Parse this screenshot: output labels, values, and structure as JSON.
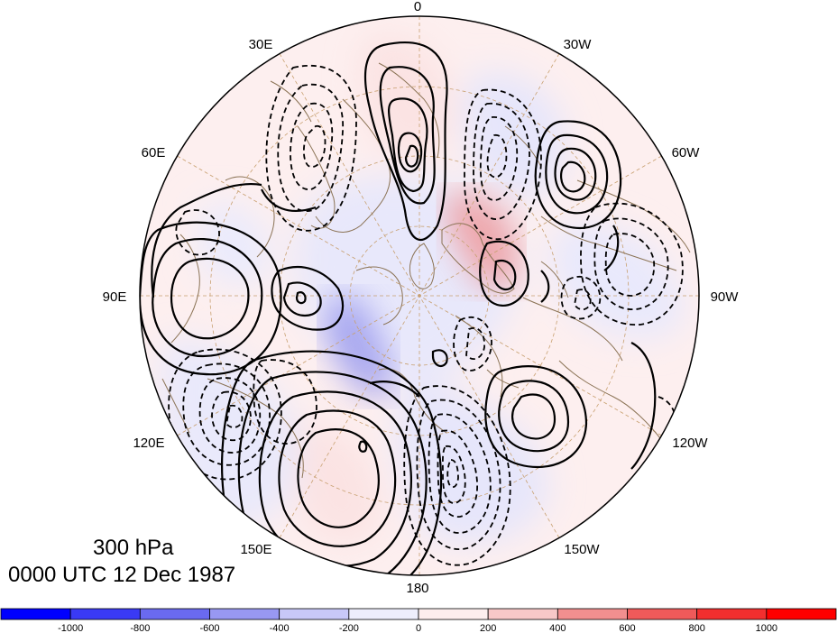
{
  "map": {
    "projection": "north-polar-stereographic",
    "longitude_labels": {
      "top": "0",
      "30W": "30W",
      "60W": "60W",
      "90W": "90W",
      "120W": "120W",
      "150W": "150W",
      "bottom": "180",
      "150E": "150E",
      "120E": "120E",
      "90E": "90E",
      "60E": "60E",
      "30E": "30E"
    },
    "contour_style": {
      "positive": "solid",
      "negative": "dashed",
      "color": "#000000"
    },
    "coastline_color": "#8b7355",
    "grid_color": "#c8a070"
  },
  "annotation": {
    "level": "300 hPa",
    "time": "0000 UTC 12 Dec 1987"
  },
  "colorbar": {
    "labels": [
      "-1000",
      "-800",
      "-600",
      "-400",
      "-200",
      "0",
      "200",
      "400",
      "600",
      "800",
      "1000"
    ],
    "colors": [
      "#0000ff",
      "#3a3af5",
      "#6a6af0",
      "#9898f2",
      "#c8c8f8",
      "#eeeefc",
      "#fdeeee",
      "#f8c8c8",
      "#f28f8f",
      "#ef5a5a",
      "#f22f2f",
      "#ff0000"
    ]
  }
}
